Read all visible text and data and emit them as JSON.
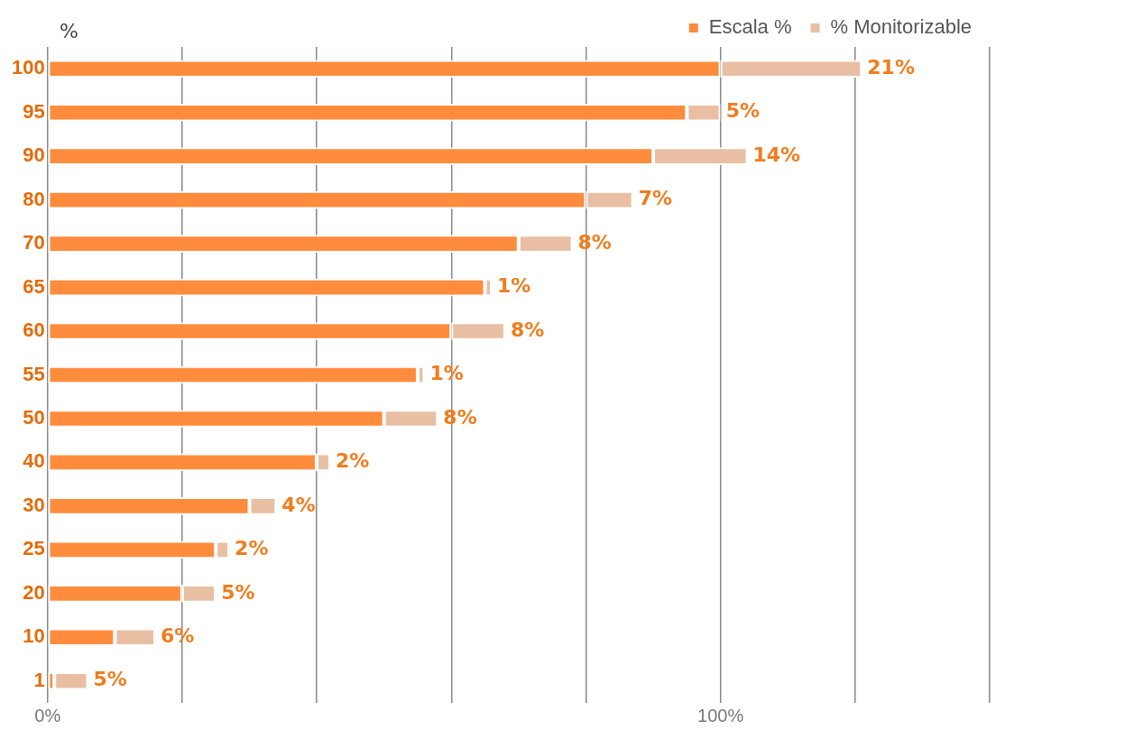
{
  "chart_data": {
    "type": "bar",
    "orientation": "horizontal",
    "stacked": true,
    "ylabel": "%",
    "categories": [
      "100",
      "95",
      "90",
      "80",
      "70",
      "65",
      "60",
      "55",
      "50",
      "40",
      "30",
      "25",
      "20",
      "10",
      "1"
    ],
    "series": [
      {
        "name": "Escala %",
        "color": "#ff8c3c",
        "values": [
          100,
          95,
          90,
          80,
          70,
          65,
          60,
          55,
          50,
          40,
          30,
          25,
          20,
          10,
          1
        ]
      },
      {
        "name": "% Monitorizable",
        "color": "#e9bfa3",
        "values": [
          21,
          5,
          14,
          7,
          8,
          1,
          8,
          1,
          8,
          2,
          4,
          2,
          5,
          6,
          5
        ],
        "value_labels": [
          "21%",
          "5%",
          "14%",
          "7%",
          "8%",
          "1%",
          "8%",
          "1%",
          "8%",
          "2%",
          "4%",
          "2%",
          "5%",
          "6%",
          "5%"
        ]
      }
    ],
    "xlim": [
      0,
      140
    ],
    "xticks": [
      {
        "value": 0,
        "label": "0%"
      },
      {
        "value": 20,
        "label": null
      },
      {
        "value": 40,
        "label": null
      },
      {
        "value": 60,
        "label": null
      },
      {
        "value": 80,
        "label": null
      },
      {
        "value": 100,
        "label": "100%"
      },
      {
        "value": 120,
        "label": null
      },
      {
        "value": 140,
        "label": null
      }
    ],
    "grid": "x",
    "legend": "top right"
  }
}
